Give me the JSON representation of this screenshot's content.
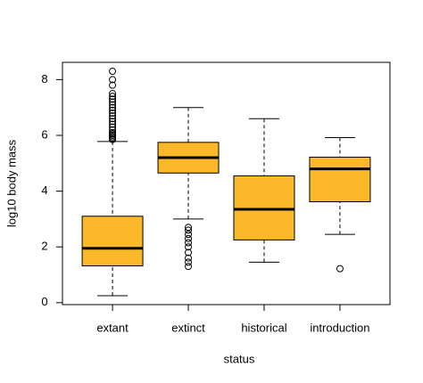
{
  "chart_data": {
    "type": "boxplot",
    "xlabel": "status",
    "ylabel": "log10 body mass",
    "categories": [
      "extant",
      "extinct",
      "historical",
      "introduction"
    ],
    "color": "#fbb829",
    "whisker_low": [
      0.25,
      3.0,
      1.45,
      2.45
    ],
    "q1": [
      1.32,
      4.65,
      2.25,
      3.62
    ],
    "median": [
      1.95,
      5.2,
      3.35,
      4.8
    ],
    "q3": [
      3.1,
      5.75,
      4.55,
      5.22
    ],
    "whisker_high": [
      5.78,
      7.0,
      6.6,
      5.92
    ],
    "outliers": [
      [
        5.85,
        5.9,
        5.95,
        6.0,
        6.05,
        6.1,
        6.2,
        6.3,
        6.4,
        6.5,
        6.6,
        6.7,
        6.8,
        6.9,
        7.0,
        7.1,
        7.2,
        7.3,
        7.4,
        7.5,
        7.8,
        8.0,
        8.3
      ],
      [
        2.7,
        2.6,
        2.45,
        2.3,
        2.15,
        2.0,
        1.8,
        1.6,
        1.45,
        1.3
      ],
      [],
      [
        1.22
      ]
    ],
    "ylim": [
      -0.07,
      8.62
    ],
    "yticks": [
      0,
      2,
      4,
      6,
      8
    ]
  }
}
